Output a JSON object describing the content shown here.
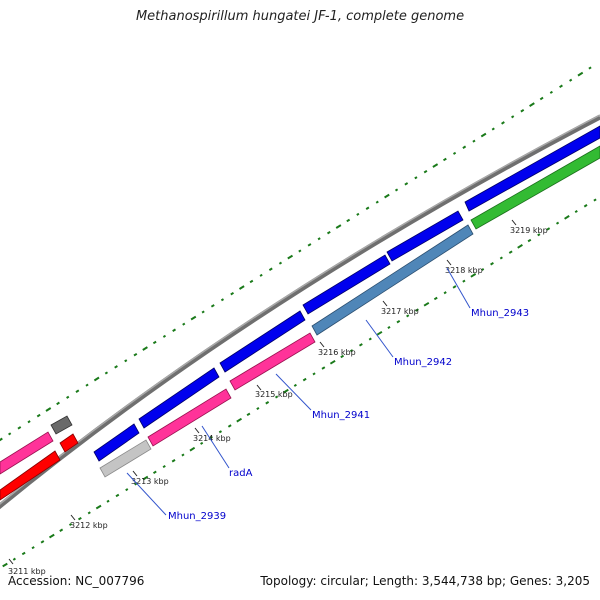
{
  "title": "Methanospirillum hungatei JF-1, complete genome",
  "footer": {
    "accession": "Accession: NC_007796",
    "summary": "Topology: circular; Length: 3,544,738 bp; Genes: 3,205"
  },
  "colors": {
    "backbone": "#808080",
    "forward_cds": "#0000ee",
    "rna_or_pseudo": "#ff0000",
    "magenta_feature": "#ff3399",
    "steelblue_feature": "#4f86b8",
    "green_feature": "#33bb33",
    "gray_feature": "#bbbbbb",
    "dark_feature": "#666666",
    "gc_ticks": "#1a7a1a",
    "label_text": "#0000cc"
  },
  "scale_labels": [
    "3211 kbp",
    "3212 kbp",
    "3213 kbp",
    "3214 kbp",
    "3215 kbp",
    "3216 kbp",
    "3217 kbp",
    "3218 kbp",
    "3219 kbp"
  ],
  "gene_labels": [
    "Mhun_2939",
    "radA",
    "Mhun_2941",
    "Mhun_2942",
    "Mhun_2943"
  ]
}
